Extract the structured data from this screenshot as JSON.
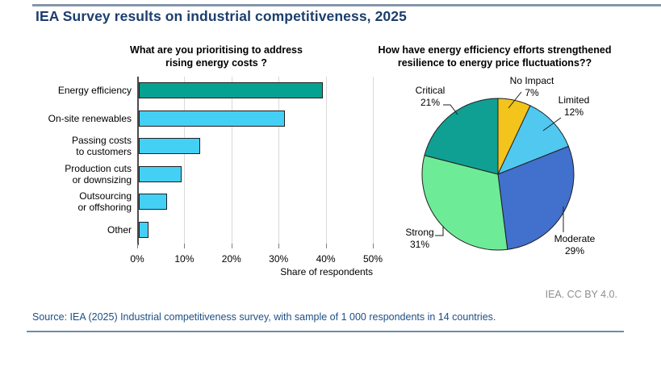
{
  "page": {
    "title": "IEA Survey results on industrial competitiveness, 2025",
    "attribution": "IEA. CC BY 4.0.",
    "source": "Source: IEA (2025) Industrial competitiveness survey, with sample of 1 000 respondents in 14 countries."
  },
  "colors": {
    "title_navy": "#1c3e6e",
    "top_rule": "#8496aa",
    "bottom_rule": "#6e8bab",
    "source_blue": "#1d4f85",
    "attribution_gray": "#8e8e8e",
    "bar_highlight": "#05a191",
    "bar_default": "#44d0f5",
    "grid": "#d9d9d9",
    "outline": "#1f1f1f"
  },
  "chart_data": [
    {
      "type": "bar",
      "orientation": "horizontal",
      "title": "What are you prioritising to address\nrising energy costs ?",
      "categories": [
        "Energy efficiency",
        "On-site renewables",
        "Passing costs\nto customers",
        "Production cuts\nor downsizing",
        "Outsourcing\nor offshoring",
        "Other"
      ],
      "values": [
        39,
        31,
        13,
        9,
        6,
        2
      ],
      "unit": "%",
      "bar_colors": [
        "#05a191",
        "#44d0f5",
        "#44d0f5",
        "#44d0f5",
        "#44d0f5",
        "#44d0f5"
      ],
      "xlabel": "Share of respondents",
      "xlim": [
        0,
        50
      ],
      "xticks": [
        "0%",
        "10%",
        "20%",
        "30%",
        "40%",
        "50%"
      ],
      "grid": true,
      "legend": false
    },
    {
      "type": "pie",
      "title": "How have energy efficiency efforts strengthened\nresilience to energy price fluctuations??",
      "start_angle_deg": 0,
      "direction": "clockwise",
      "slices": [
        {
          "label": "No Impact",
          "value": 7,
          "color": "#f2c41c"
        },
        {
          "label": "Limited",
          "value": 12,
          "color": "#50c8f0"
        },
        {
          "label": "Moderate",
          "value": 29,
          "color": "#4170cd"
        },
        {
          "label": "Strong",
          "value": 31,
          "color": "#6eeb97"
        },
        {
          "label": "Critical",
          "value": 21,
          "color": "#0fa093"
        }
      ],
      "legend": false
    }
  ]
}
